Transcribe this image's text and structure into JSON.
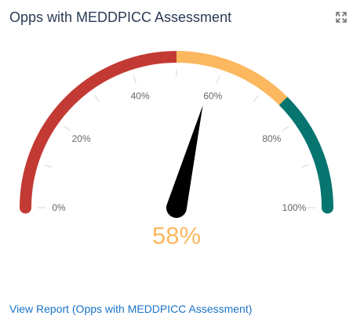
{
  "widget": {
    "title": "Opps with MEDDPICC Assessment",
    "link_text": "View Report (Opps with MEDDPICC Assessment)",
    "expand_icon": "expand-icon"
  },
  "gauge": {
    "value_label": "58%",
    "value": 58,
    "min": 0,
    "max": 100,
    "ticks": [
      {
        "value": 0,
        "label": "0%"
      },
      {
        "value": 20,
        "label": "20%"
      },
      {
        "value": 40,
        "label": "40%"
      },
      {
        "value": 60,
        "label": "60%"
      },
      {
        "value": 80,
        "label": "80%"
      },
      {
        "value": 100,
        "label": "100%"
      }
    ],
    "bands": [
      {
        "from": 0,
        "to": 50,
        "color": "#c33a35"
      },
      {
        "from": 50,
        "to": 75,
        "color": "#fbb85f"
      },
      {
        "from": 75,
        "to": 100,
        "color": "#067570"
      }
    ],
    "needle_color": "#000000",
    "value_color": "#fbb85f",
    "tick_color": "#e3e3e3",
    "label_color": "#666666"
  }
}
